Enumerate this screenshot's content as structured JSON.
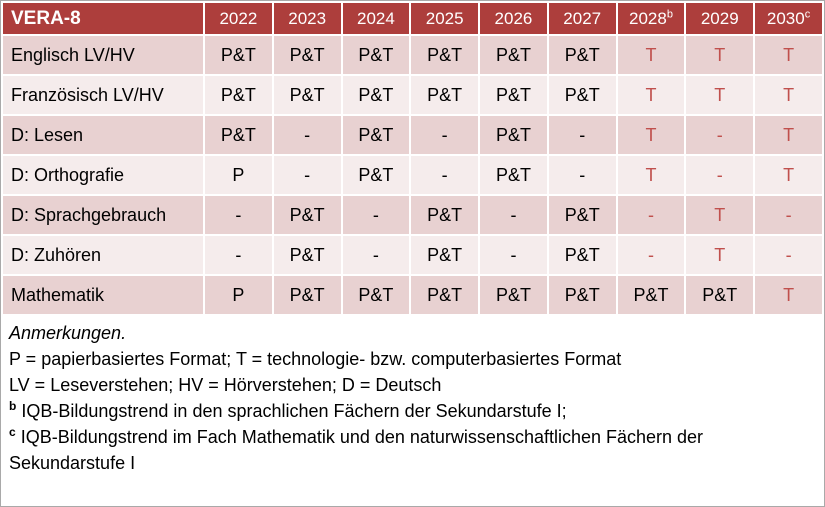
{
  "colors": {
    "header_bg": "#ad3e3c",
    "accent_red": "#c0504d",
    "band_dark": "#e8d1d1",
    "band_light": "#f5ecec"
  },
  "table": {
    "title": "VERA-8",
    "years": [
      {
        "label": "2022",
        "sup": ""
      },
      {
        "label": "2023",
        "sup": ""
      },
      {
        "label": "2024",
        "sup": ""
      },
      {
        "label": "2025",
        "sup": ""
      },
      {
        "label": "2026",
        "sup": ""
      },
      {
        "label": "2027",
        "sup": ""
      },
      {
        "label": "2028",
        "sup": "b"
      },
      {
        "label": "2029",
        "sup": ""
      },
      {
        "label": "2030",
        "sup": "c"
      }
    ],
    "rows": [
      {
        "label": "Englisch LV/HV",
        "cells": [
          {
            "text": "P&T",
            "red": false
          },
          {
            "text": "P&T",
            "red": false
          },
          {
            "text": "P&T",
            "red": false
          },
          {
            "text": "P&T",
            "red": false
          },
          {
            "text": "P&T",
            "red": false
          },
          {
            "text": "P&T",
            "red": false
          },
          {
            "text": "T",
            "red": true
          },
          {
            "text": "T",
            "red": true
          },
          {
            "text": "T",
            "red": true
          }
        ]
      },
      {
        "label": "Französisch LV/HV",
        "cells": [
          {
            "text": "P&T",
            "red": false
          },
          {
            "text": "P&T",
            "red": false
          },
          {
            "text": "P&T",
            "red": false
          },
          {
            "text": "P&T",
            "red": false
          },
          {
            "text": "P&T",
            "red": false
          },
          {
            "text": "P&T",
            "red": false
          },
          {
            "text": "T",
            "red": true
          },
          {
            "text": "T",
            "red": true
          },
          {
            "text": "T",
            "red": true
          }
        ]
      },
      {
        "label": "D: Lesen",
        "cells": [
          {
            "text": "P&T",
            "red": false
          },
          {
            "text": "-",
            "red": false
          },
          {
            "text": "P&T",
            "red": false
          },
          {
            "text": "-",
            "red": false
          },
          {
            "text": "P&T",
            "red": false
          },
          {
            "text": "-",
            "red": false
          },
          {
            "text": "T",
            "red": true
          },
          {
            "text": "-",
            "red": true
          },
          {
            "text": "T",
            "red": true
          }
        ]
      },
      {
        "label": "D: Orthografie",
        "cells": [
          {
            "text": "P",
            "red": false
          },
          {
            "text": "-",
            "red": false
          },
          {
            "text": "P&T",
            "red": false
          },
          {
            "text": "-",
            "red": false
          },
          {
            "text": "P&T",
            "red": false
          },
          {
            "text": "-",
            "red": false
          },
          {
            "text": "T",
            "red": true
          },
          {
            "text": "-",
            "red": true
          },
          {
            "text": "T",
            "red": true
          }
        ]
      },
      {
        "label": "D: Sprachgebrauch",
        "cells": [
          {
            "text": "-",
            "red": false
          },
          {
            "text": "P&T",
            "red": false
          },
          {
            "text": "-",
            "red": false
          },
          {
            "text": "P&T",
            "red": false
          },
          {
            "text": "-",
            "red": false
          },
          {
            "text": "P&T",
            "red": false
          },
          {
            "text": "-",
            "red": true
          },
          {
            "text": "T",
            "red": true
          },
          {
            "text": "-",
            "red": true
          }
        ]
      },
      {
        "label": "D: Zuhören",
        "cells": [
          {
            "text": "-",
            "red": false
          },
          {
            "text": "P&T",
            "red": false
          },
          {
            "text": "-",
            "red": false
          },
          {
            "text": "P&T",
            "red": false
          },
          {
            "text": "-",
            "red": false
          },
          {
            "text": "P&T",
            "red": false
          },
          {
            "text": "-",
            "red": true
          },
          {
            "text": "T",
            "red": true
          },
          {
            "text": "-",
            "red": true
          }
        ]
      },
      {
        "label": "Mathematik",
        "cells": [
          {
            "text": "P",
            "red": false
          },
          {
            "text": "P&T",
            "red": false
          },
          {
            "text": "P&T",
            "red": false
          },
          {
            "text": "P&T",
            "red": false
          },
          {
            "text": "P&T",
            "red": false
          },
          {
            "text": "P&T",
            "red": false
          },
          {
            "text": "P&T",
            "red": false
          },
          {
            "text": "P&T",
            "red": false
          },
          {
            "text": "T",
            "red": true
          }
        ]
      }
    ]
  },
  "notes": {
    "heading": "Anmerkungen.",
    "lines": [
      {
        "sup": "",
        "text": "P = papierbasiertes Format; T = technologie- bzw. computerbasiertes Format"
      },
      {
        "sup": "",
        "text": "LV = Leseverstehen; HV = Hörverstehen; D = Deutsch"
      },
      {
        "sup": "b",
        "text": "IQB-Bildungstrend in den sprachlichen Fächern der Sekundarstufe I;"
      },
      {
        "sup": "c",
        "text": "IQB-Bildungstrend im Fach Mathematik und den naturwissenschaftlichen Fächern der Sekundarstufe I"
      }
    ]
  }
}
